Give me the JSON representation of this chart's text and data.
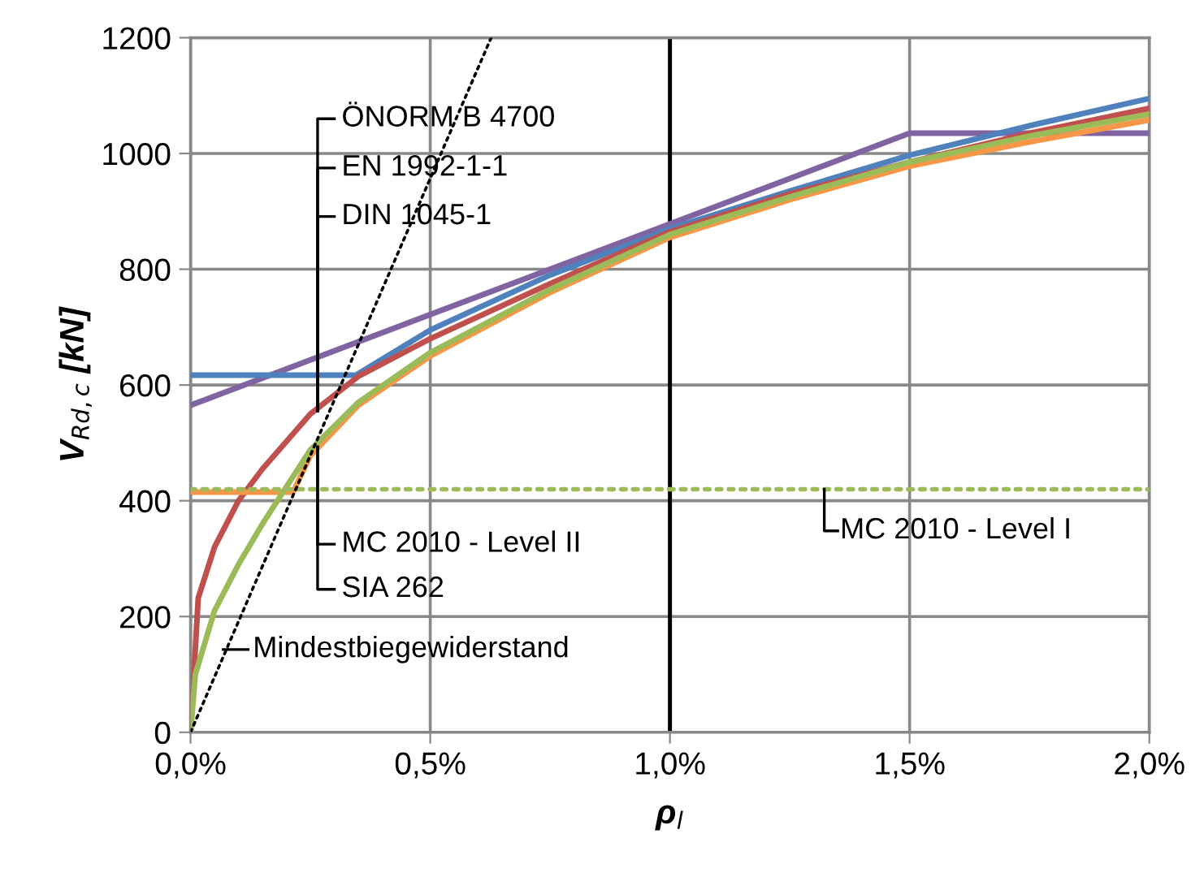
{
  "chart_data": {
    "type": "line",
    "xlabel": "ρ$_{l}$",
    "ylabel": "V$_{Rd,c}$ [kN]",
    "xlim": [
      0,
      2.0
    ],
    "xticks": [
      {
        "value": 0,
        "label": "0,0%"
      },
      {
        "value": 0.5,
        "label": "0,5%"
      },
      {
        "value": 1.0,
        "label": "1,0%"
      },
      {
        "value": 1.5,
        "label": "1,5%"
      },
      {
        "value": 2.0,
        "label": "2,0%"
      }
    ],
    "ylim": [
      0,
      1200
    ],
    "yticks": [
      0,
      200,
      400,
      600,
      800,
      1000,
      1200
    ],
    "grid": true,
    "marker": "none",
    "series": [
      {
        "color": "#8064a2",
        "x": [
          0,
          1.5,
          2.0
        ],
        "values": [
          565,
          1035,
          1035
        ]
      },
      {
        "color": "#4f81bd",
        "x": [
          0,
          0.345,
          0.5,
          0.75,
          1.0,
          1.25,
          1.5,
          1.75,
          2.0
        ],
        "values": [
          617,
          617,
          695,
          790,
          870,
          935,
          997,
          1048,
          1095
        ]
      },
      {
        "color": "#c0504d",
        "x": [
          0,
          0.016,
          0.05,
          0.1,
          0.15,
          0.25,
          0.35,
          0.5,
          0.75,
          1.0,
          1.25,
          1.5,
          1.75,
          2.0
        ],
        "values": [
          0,
          232,
          320,
          400,
          455,
          550,
          615,
          680,
          775,
          865,
          930,
          985,
          1035,
          1078
        ]
      },
      {
        "color": "#f79646",
        "x": [
          0,
          0.214,
          0.25,
          0.35,
          0.5,
          0.75,
          1.0,
          1.25,
          1.5,
          1.75,
          2.0
        ],
        "values": [
          415,
          415,
          478,
          565,
          650,
          760,
          855,
          920,
          978,
          1020,
          1058
        ]
      },
      {
        "color": "#9bbb59",
        "x": [
          0,
          0.01,
          0.05,
          0.1,
          0.15,
          0.25,
          0.35,
          0.5,
          0.75,
          1.0,
          1.25,
          1.5,
          1.75,
          2.0
        ],
        "values": [
          0,
          100,
          210,
          290,
          360,
          488,
          570,
          656,
          765,
          860,
          925,
          985,
          1030,
          1068
        ]
      },
      {
        "color": "#9bbb59",
        "line_style": "dotted",
        "x": [
          0,
          2.0
        ],
        "values": [
          420,
          420
        ]
      },
      {
        "color": "#000000",
        "line_style": "dotted",
        "x": [
          0,
          0.627
        ],
        "values": [
          0,
          1200
        ]
      }
    ],
    "ref_lines": [
      {
        "axis": "x",
        "value": 1.0,
        "color": "#000000"
      }
    ],
    "annotations": [
      {
        "text": "ÖNORM B 4700",
        "x": 0.265,
        "y": 555
      },
      {
        "text": "EN 1992-1-1",
        "x": 0.265,
        "y": 555
      },
      {
        "text": "DIN 1045-1",
        "x": 0.265,
        "y": 555
      },
      {
        "text": "MC 2010 - Level II",
        "x": 0.265,
        "y": 493
      },
      {
        "text": "SIA 262",
        "x": 0.265,
        "y": 493
      },
      {
        "text": "Mindestbiegewiderstand",
        "x": 0.068,
        "y": 143
      },
      {
        "text": "MC 2010 - Level I",
        "x": 1.322,
        "y": 420
      }
    ]
  }
}
